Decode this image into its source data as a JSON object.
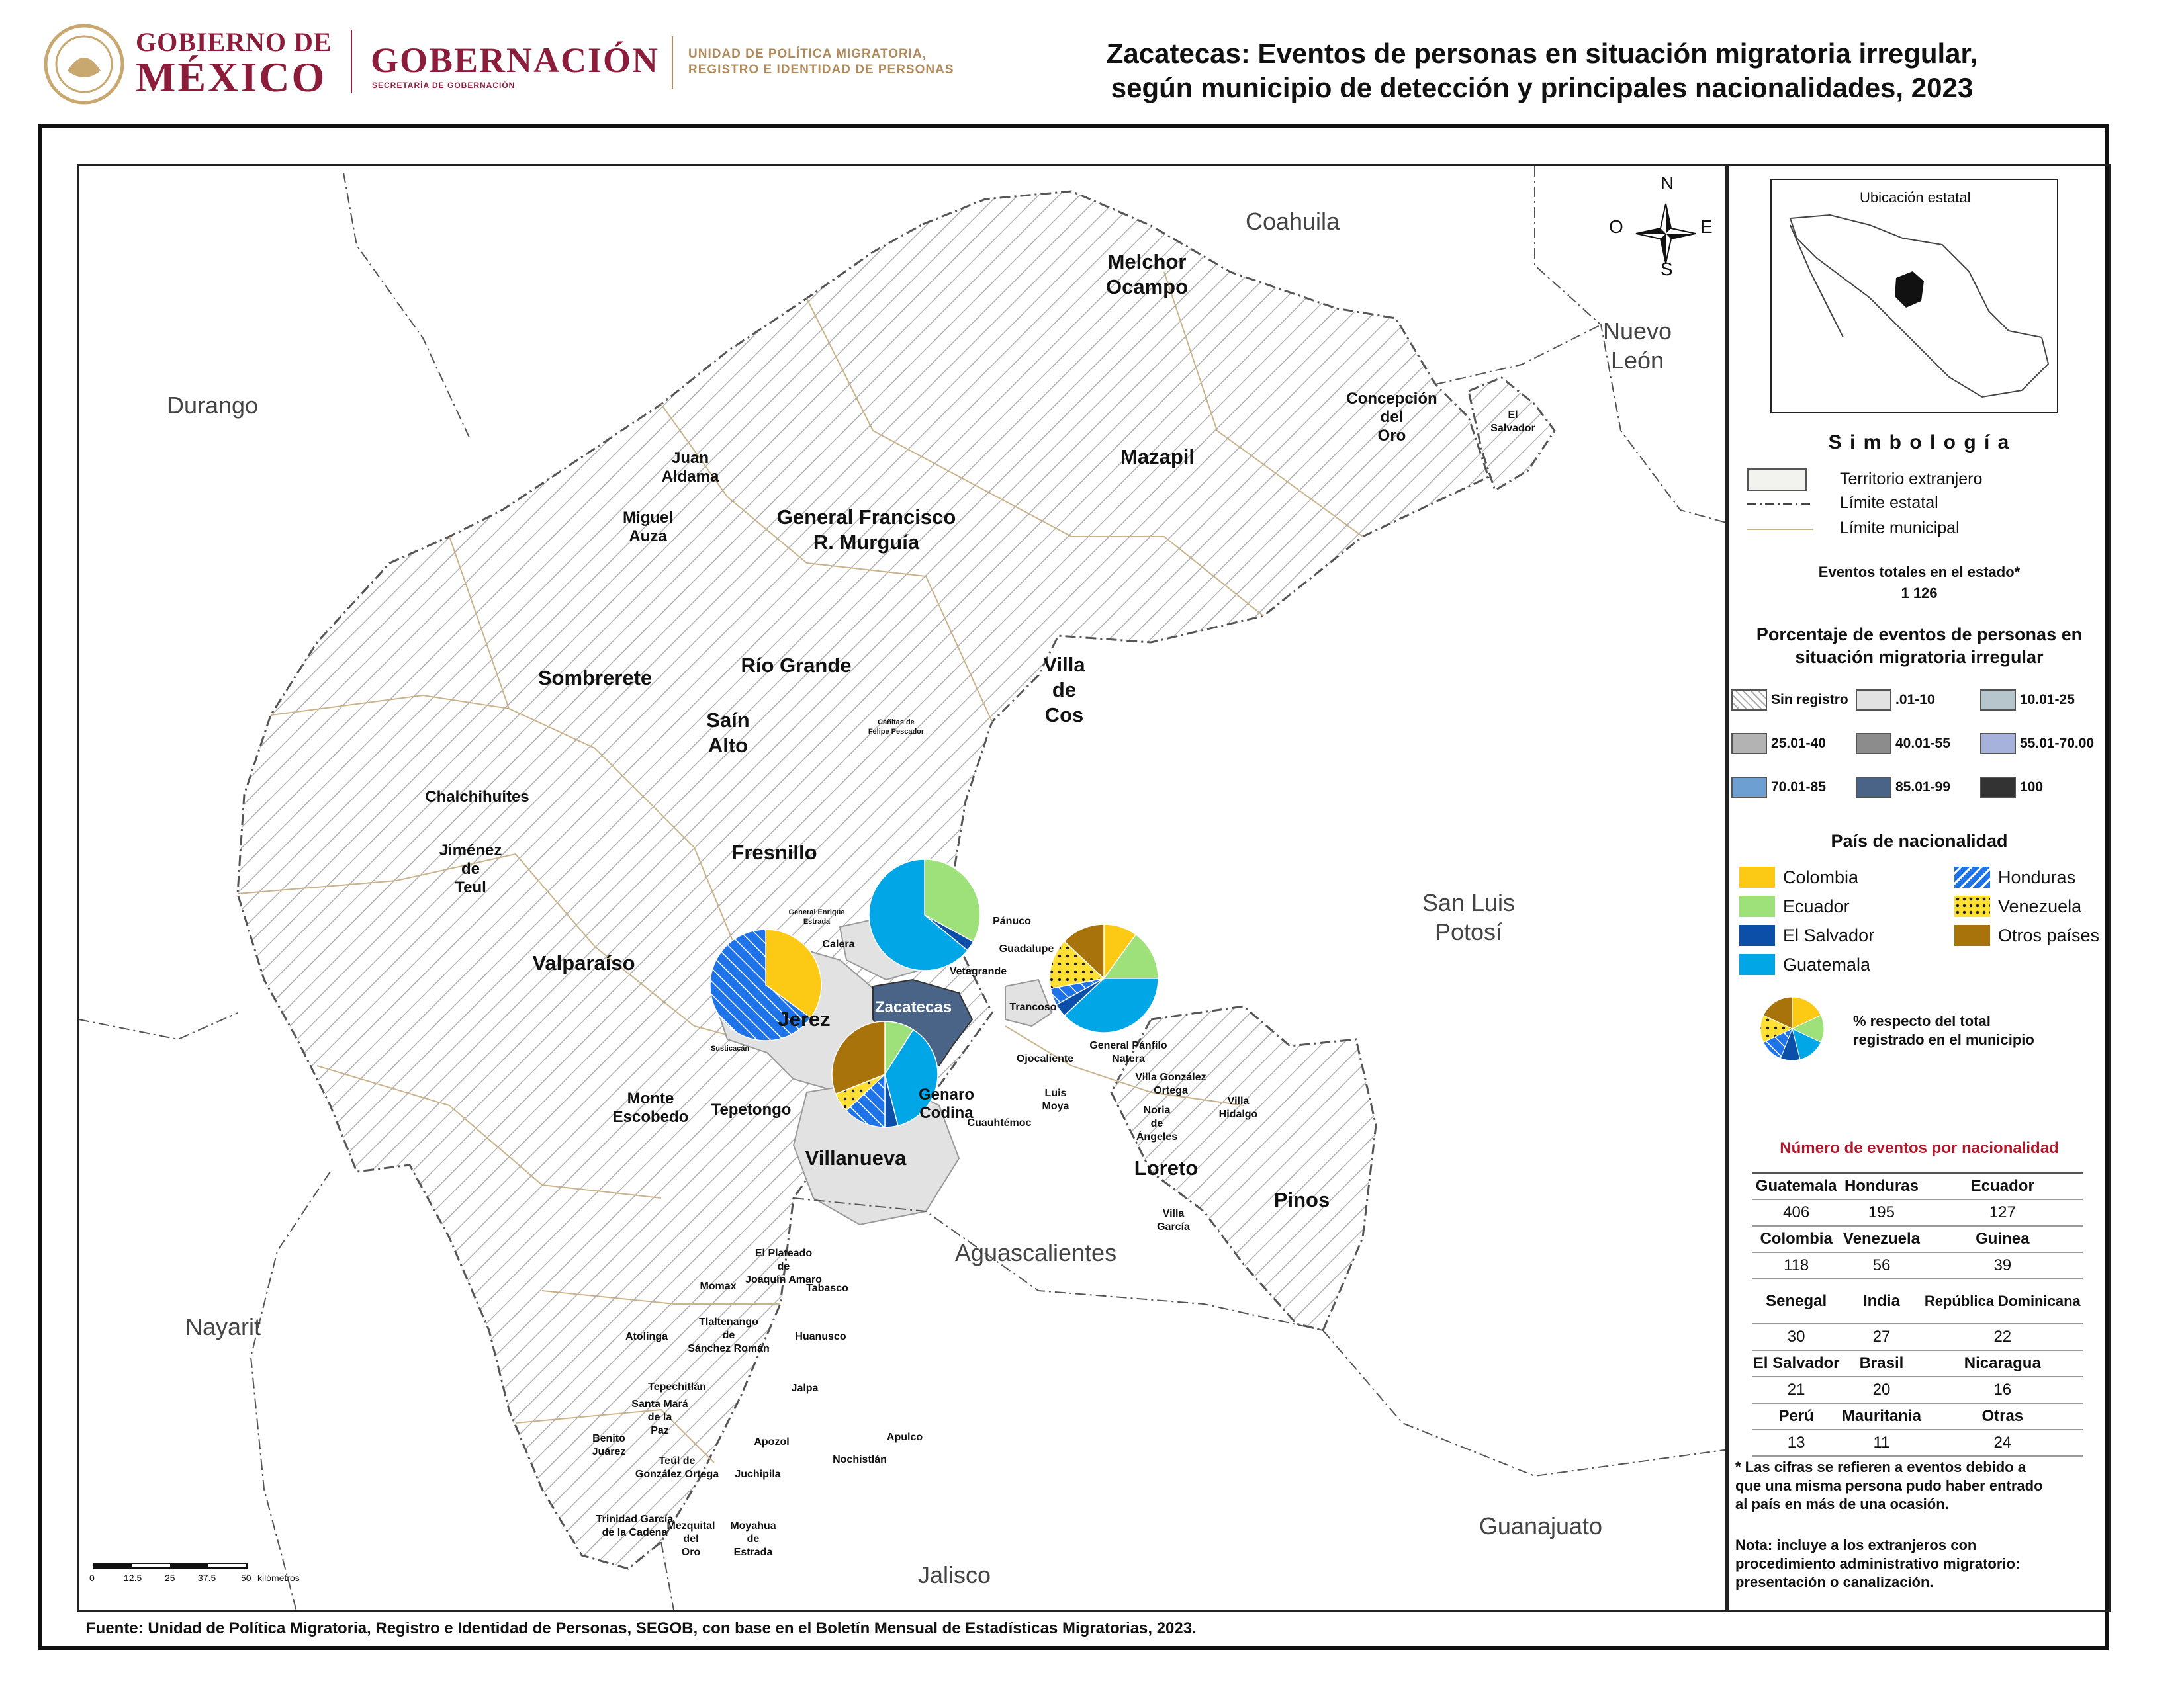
{
  "header": {
    "gob_line1": "GOBIERNO DE",
    "gob_line2": "MÉXICO",
    "gobernacion": "GOBERNACIÓN",
    "secretaria": "SECRETARÍA DE GOBERNACIÓN",
    "unidad_line1": "UNIDAD DE POLÍTICA MIGRATORIA,",
    "unidad_line2": "REGISTRO E IDENTIDAD DE PERSONAS",
    "title_line1": "Zacatecas: Eventos de personas en situación migratoria irregular,",
    "title_line2": "según municipio de detección y principales nacionalidades, 2023"
  },
  "compass": {
    "n": "N",
    "s": "S",
    "e": "E",
    "o": "O"
  },
  "states": {
    "coahuila": "Coahuila",
    "durango": "Durango",
    "nuevo_leon_1": "Nuevo",
    "nuevo_leon_2": "León",
    "slp_1": "San Luis",
    "slp_2": "Potosí",
    "nayarit": "Nayarit",
    "aguascalientes": "Aguascalientes",
    "guanajuato": "Guanajuato",
    "jalisco": "Jalisco"
  },
  "municipios": {
    "melchor_1": "Melchor",
    "melchor_2": "Ocampo",
    "concepcion_1": "Concepción",
    "concepcion_2": "del",
    "concepcion_3": "Oro",
    "el_salvador_1": "El",
    "el_salvador_2": "Salvador",
    "mazapil": "Mazapil",
    "juan_aldama_1": "Juan",
    "juan_aldama_2": "Aldama",
    "miguel_auza_1": "Miguel",
    "miguel_auza_2": "Auza",
    "murguia_1": "General Francisco",
    "murguia_2": "R. Murguía",
    "sombrerete": "Sombrerete",
    "rio_grande": "Río Grande",
    "villa_cos_1": "Villa",
    "villa_cos_2": "de",
    "villa_cos_3": "Cos",
    "sain_alto_1": "Saín",
    "sain_alto_2": "Alto",
    "canitas_1": "Cañitas de",
    "canitas_2": "Felipe Pescador",
    "chalchihuites": "Chalchihuites",
    "jimenez_1": "Jiménez",
    "jimenez_2": "de",
    "jimenez_3": "Teul",
    "fresnillo": "Fresnillo",
    "gral_enrique_1": "General Enrique",
    "gral_enrique_2": "Estrada",
    "panuco": "Pánuco",
    "calera": "Calera",
    "guadalupe": "Guadalupe",
    "vetagrande": "Vetagrande",
    "valparaiso": "Valparaíso",
    "jerez": "Jerez",
    "zacatecas": "Zacatecas",
    "trancoso": "Trancoso",
    "gral_panfilo_1": "General Pánfilo",
    "gral_panfilo_2": "Natera",
    "susticacan": "Susticacán",
    "ojocaliente": "Ojocaliente",
    "villa_gonzalez_1": "Villa González",
    "villa_gonzalez_2": "Ortega",
    "monte_1": "Monte",
    "monte_2": "Escobedo",
    "tepetongo": "Tepetongo",
    "genaro_1": "Genaro",
    "genaro_2": "Codina",
    "luis_moya_1": "Luis",
    "luis_moya_2": "Moya",
    "noria_1": "Noria",
    "noria_2": "de",
    "noria_3": "Ángeles",
    "villa_hidalgo_1": "Villa",
    "villa_hidalgo_2": "Hidalgo",
    "cuauhtemoc": "Cuauhtémoc",
    "villanueva": "Villanueva",
    "loreto": "Loreto",
    "pinos": "Pinos",
    "villa_garcia_1": "Villa",
    "villa_garcia_2": "García",
    "plateado_1": "El Plateado",
    "plateado_2": "de",
    "plateado_3": "Joaquín Amaro",
    "momax": "Momax",
    "tabasco": "Tabasco",
    "atolinga": "Atolinga",
    "tlaltenango_1": "Tlaltenango",
    "tlaltenango_2": "de",
    "tlaltenango_3": "Sánchez Román",
    "huanusco": "Huanusco",
    "tepechitlan": "Tepechitlán",
    "santa_maria_1": "Santa Mará",
    "santa_maria_2": "de la",
    "santa_maria_3": "Paz",
    "jalpa": "Jalpa",
    "benito_1": "Benito",
    "benito_2": "Juárez",
    "apozol": "Apozol",
    "apulco": "Apulco",
    "teul_1": "Teúl de",
    "teul_2": "González Ortega",
    "nochistlan": "Nochistlán",
    "juchipila": "Juchipila",
    "trinidad_1": "Trinidad García",
    "trinidad_2": "de la Cadena",
    "mezquital_1": "Mezquital",
    "mezquital_2": "del",
    "mezquital_3": "Oro",
    "moyahua_1": "Moyahua",
    "moyahua_2": "de",
    "moyahua_3": "Estrada"
  },
  "scale_bar": {
    "ticks": [
      "0",
      "12.5",
      "25",
      "37.5",
      "50"
    ],
    "unit": "kilómetros"
  },
  "inset": {
    "title": "Ubicación estatal"
  },
  "legend": {
    "title": "S i m b o l o g í a",
    "foreign": "Territorio extranjero",
    "state_limit": "Límite estatal",
    "mun_limit": "Límite municipal",
    "total_label": "Eventos totales en el estado*",
    "total_value": "1 126",
    "pct_title_1": "Porcentaje de eventos de personas en",
    "pct_title_2": "situación migratoria irregular",
    "pct_classes": [
      {
        "label": "Sin registro",
        "color": "#ffffff"
      },
      {
        "label": ".01-10",
        "color": "#e2e2e2"
      },
      {
        "label": "10.01-25",
        "color": "#b7c6cc"
      },
      {
        "label": "25.01-40",
        "color": "#b3b3b3"
      },
      {
        "label": "40.01-55",
        "color": "#8c8c8c"
      },
      {
        "label": "55.01-70.00",
        "color": "#a6b1dc"
      },
      {
        "label": "70.01-85",
        "color": "#6e9fd2"
      },
      {
        "label": "85.01-99",
        "color": "#4a6488"
      },
      {
        "label": "100",
        "color": "#333333"
      }
    ],
    "nat_title": "País de nacionalidad",
    "nationalities": [
      {
        "label": "Colombia",
        "color": "#fcc914"
      },
      {
        "label": "Ecuador",
        "color": "#9ee07a"
      },
      {
        "label": "El Salvador",
        "color": "#0b4fa8"
      },
      {
        "label": "Guatemala",
        "color": "#00a6e6"
      },
      {
        "label": "Honduras",
        "color": "#1e73e8"
      },
      {
        "label": "Venezuela",
        "color": "#ffe033"
      },
      {
        "label": "Otros países",
        "color": "#a8730a"
      }
    ],
    "pie_note_1": "% respecto del total",
    "pie_note_2": "registrado en el municipio"
  },
  "events_table": {
    "title": "Número de eventos por nacionalidad",
    "rows": [
      {
        "names": [
          "Guatemala",
          "Honduras",
          "Ecuador"
        ],
        "values": [
          "406",
          "195",
          "127"
        ]
      },
      {
        "names": [
          "Colombia",
          "Venezuela",
          "Guinea"
        ],
        "values": [
          "118",
          "56",
          "39"
        ]
      },
      {
        "names": [
          "Senegal",
          "India",
          "República Dominicana"
        ],
        "values": [
          "30",
          "27",
          "22"
        ]
      },
      {
        "names": [
          "El Salvador",
          "Brasil",
          "Nicaragua"
        ],
        "values": [
          "21",
          "20",
          "16"
        ]
      },
      {
        "names": [
          "Perú",
          "Mauritania",
          "Otras"
        ],
        "values": [
          "13",
          "11",
          "24"
        ]
      }
    ]
  },
  "notes": {
    "n1_1": "* Las cifras se refieren a eventos debido a",
    "n1_2": "que una misma persona pudo haber entrado",
    "n1_3": "al país en más de una ocasión.",
    "n2_1": "Nota: incluye a los extranjeros con",
    "n2_2": "procedimiento administrativo migratorio:",
    "n2_3": "presentación o canalización."
  },
  "source": "Fuente: Unidad de Política Migratoria, Registro e Identidad de Personas, SEGOB, con base en el Boletín Mensual de Estadísticas Migratorias, 2023.",
  "pies": [
    {
      "municipio": "Fresnillo",
      "slices": [
        {
          "nationality": "Ecuador",
          "percent": 33
        },
        {
          "nationality": "El Salvador",
          "percent": 3
        },
        {
          "nationality": "Guatemala",
          "percent": 64
        }
      ]
    },
    {
      "municipio": "Valparaíso",
      "slices": [
        {
          "nationality": "Colombia",
          "percent": 35
        },
        {
          "nationality": "Honduras",
          "percent": 65
        }
      ]
    },
    {
      "municipio": "General Pánfilo Natera",
      "slices": [
        {
          "nationality": "Colombia",
          "percent": 10
        },
        {
          "nationality": "Ecuador",
          "percent": 15
        },
        {
          "nationality": "Guatemala",
          "percent": 38
        },
        {
          "nationality": "El Salvador",
          "percent": 4
        },
        {
          "nationality": "Honduras",
          "percent": 5
        },
        {
          "nationality": "Venezuela",
          "percent": 15
        },
        {
          "nationality": "Otros países",
          "percent": 13
        }
      ]
    },
    {
      "municipio": "Genaro Codina",
      "slices": [
        {
          "nationality": "Ecuador",
          "percent": 9
        },
        {
          "nationality": "Guatemala",
          "percent": 37
        },
        {
          "nationality": "El Salvador",
          "percent": 4
        },
        {
          "nationality": "Honduras",
          "percent": 13
        },
        {
          "nationality": "Venezuela",
          "percent": 6
        },
        {
          "nationality": "Otros países",
          "percent": 31
        }
      ]
    },
    {
      "municipio": "legend-sample",
      "slices": [
        {
          "nationality": "Colombia",
          "percent": 18
        },
        {
          "nationality": "Ecuador",
          "percent": 14
        },
        {
          "nationality": "Guatemala",
          "percent": 14
        },
        {
          "nationality": "El Salvador",
          "percent": 10
        },
        {
          "nationality": "Honduras",
          "percent": 12
        },
        {
          "nationality": "Venezuela",
          "percent": 14
        },
        {
          "nationality": "Otros países",
          "percent": 18
        }
      ]
    }
  ]
}
